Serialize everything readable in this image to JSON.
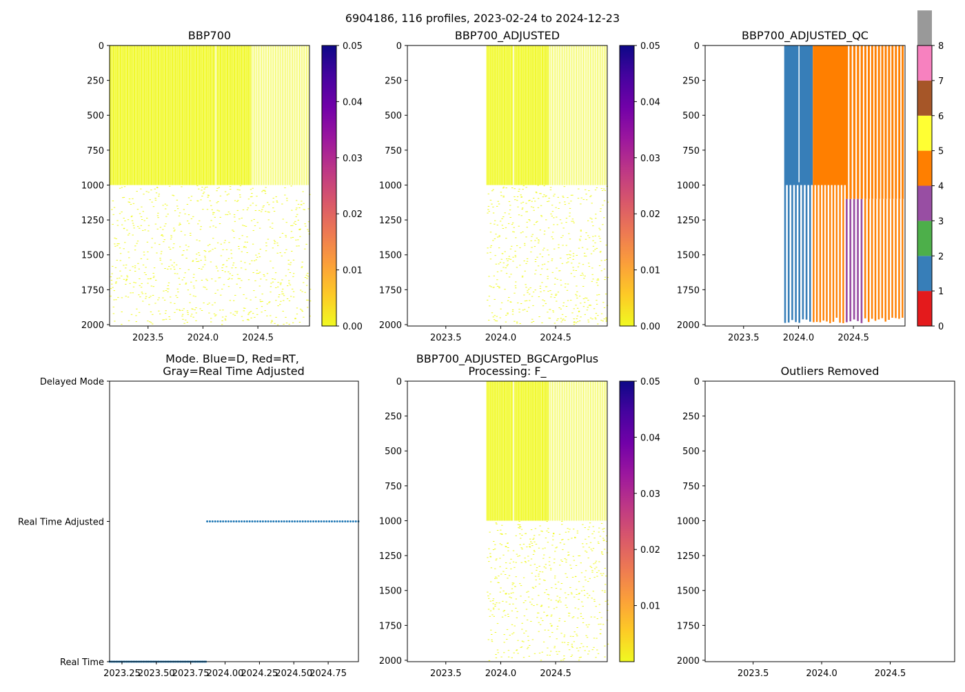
{
  "suptitle": "6904186, 116 profiles, 2023-02-24 to 2024-12-23",
  "colors": {
    "background": "#ffffff",
    "data_yellow": "#f0f921",
    "mode_blue": "#1f77b4",
    "qc": [
      "#e41a1c",
      "#377eb8",
      "#4daf4a",
      "#984ea3",
      "#ff7f00",
      "#ffff33",
      "#a65628",
      "#f781bf",
      "#999999"
    ],
    "plasma_stops": [
      "#f0f921",
      "#fdca26",
      "#fb9f3a",
      "#ed7953",
      "#d8576b",
      "#bd3786",
      "#9c179e",
      "#7201a8",
      "#46039f",
      "#0d0887"
    ]
  },
  "chart_data": [
    {
      "id": "bbp700",
      "type": "heatmap",
      "title": "BBP700",
      "xlim": [
        2023.15,
        2024.97
      ],
      "ylim": [
        2010,
        0
      ],
      "xticks": [
        2023.5,
        2024.0,
        2024.5
      ],
      "xtick_labels": [
        "2023.5",
        "2024.0",
        "2024.5"
      ],
      "yticks": [
        0,
        250,
        500,
        750,
        1000,
        1250,
        1500,
        1750,
        2000
      ],
      "ytick_labels": [
        "0",
        "250",
        "500",
        "750",
        "1000",
        "1250",
        "1500",
        "1750",
        "2000"
      ],
      "profile_start": 2023.15,
      "profile_end": 2024.97,
      "dense_to_depth": 1000,
      "sparse_to_depth": 2000,
      "colorbar": {
        "vmin": 0.0,
        "vmax": 0.05,
        "ticks": [
          0.0,
          0.01,
          0.02,
          0.03,
          0.04,
          0.05
        ],
        "tick_labels": [
          "0.00",
          "0.01",
          "0.02",
          "0.03",
          "0.04",
          "0.05"
        ]
      }
    },
    {
      "id": "bbp700adj",
      "type": "heatmap",
      "title": "BBP700_ADJUSTED",
      "xlim": [
        2023.15,
        2024.97
      ],
      "ylim": [
        2010,
        0
      ],
      "xticks": [
        2023.5,
        2024.0,
        2024.5
      ],
      "xtick_labels": [
        "2023.5",
        "2024.0",
        "2024.5"
      ],
      "yticks": [
        0,
        250,
        500,
        750,
        1000,
        1250,
        1500,
        1750,
        2000
      ],
      "ytick_labels": [
        "0",
        "250",
        "500",
        "750",
        "1000",
        "1250",
        "1500",
        "1750",
        "2000"
      ],
      "profile_start": 2023.87,
      "profile_end": 2024.97,
      "dense_to_depth": 1000,
      "sparse_to_depth": 2000,
      "colorbar": {
        "vmin": 0.0,
        "vmax": 0.05,
        "ticks": [
          0.0,
          0.01,
          0.02,
          0.03,
          0.04,
          0.05
        ],
        "tick_labels": [
          "0.00",
          "0.01",
          "0.02",
          "0.03",
          "0.04",
          "0.05"
        ]
      }
    },
    {
      "id": "qc",
      "type": "heatmap",
      "title": "BBP700_ADJUSTED_QC",
      "xlim": [
        2023.15,
        2024.97
      ],
      "ylim": [
        2010,
        0
      ],
      "xticks": [
        2023.5,
        2024.0,
        2024.5
      ],
      "xtick_labels": [
        "2023.5",
        "2024.0",
        "2024.5"
      ],
      "yticks": [
        0,
        250,
        500,
        750,
        1000,
        1250,
        1500,
        1750,
        2000
      ],
      "ytick_labels": [
        "0",
        "250",
        "500",
        "750",
        "1000",
        "1250",
        "1500",
        "1750",
        "2000"
      ],
      "qc_segments": [
        {
          "x0": 2023.87,
          "x1": 2024.13,
          "flag_upper": 1,
          "split_depth": 1000,
          "flag_lower": 1
        },
        {
          "x0": 2024.13,
          "x1": 2024.43,
          "flag_upper": 4,
          "split_depth": 1000,
          "flag_lower": 4
        },
        {
          "x0": 2024.43,
          "x1": 2024.6,
          "flag_upper": 4,
          "split_depth": 1100,
          "flag_lower": 3
        },
        {
          "x0": 2024.6,
          "x1": 2024.97,
          "flag_upper": 4,
          "split_depth": 1100,
          "flag_lower": 4
        }
      ],
      "colorbar": {
        "vmin": 0,
        "vmax": 8,
        "ticks": [
          0,
          1,
          2,
          3,
          4,
          5,
          6,
          7,
          8
        ],
        "tick_labels": [
          "0",
          "1",
          "2",
          "3",
          "4",
          "5",
          "6",
          "7",
          "8"
        ]
      }
    },
    {
      "id": "mode",
      "type": "scatter",
      "title_lines": [
        "Mode. Blue=D, Red=RT,",
        "Gray=Real Time Adjusted"
      ],
      "xlim": [
        2023.16,
        2024.97
      ],
      "ylim": [
        0,
        2
      ],
      "xticks": [
        2023.25,
        2023.5,
        2023.75,
        2024.0,
        2024.25,
        2024.5,
        2024.75
      ],
      "xtick_labels": [
        "2023.25",
        "2023.50",
        "2023.75",
        "2024.00",
        "2024.25",
        "2024.50",
        "2024.75"
      ],
      "yticks": [
        0,
        1,
        2
      ],
      "ytick_labels": [
        "Real Time",
        "Real Time Adjusted",
        "Delayed Mode"
      ],
      "series": [
        {
          "name": "Real Time",
          "y": 0,
          "x_start": 2023.16,
          "x_end": 2023.86,
          "count": 58
        },
        {
          "name": "Real Time Adjusted",
          "y": 1,
          "x_start": 2023.87,
          "x_end": 2024.97,
          "count": 58
        }
      ]
    },
    {
      "id": "plus",
      "type": "heatmap",
      "title_lines": [
        "BBP700_ADJUSTED_BGCArgoPlus",
        "Processing: F_"
      ],
      "xlim": [
        2023.15,
        2024.97
      ],
      "ylim": [
        2010,
        0
      ],
      "xticks": [
        2023.5,
        2024.0,
        2024.5
      ],
      "xtick_labels": [
        "2023.5",
        "2024.0",
        "2024.5"
      ],
      "yticks": [
        0,
        250,
        500,
        750,
        1000,
        1250,
        1500,
        1750,
        2000
      ],
      "ytick_labels": [
        "0",
        "250",
        "500",
        "750",
        "1000",
        "1250",
        "1500",
        "1750",
        "2000"
      ],
      "profile_start": 2023.87,
      "profile_end": 2024.97,
      "dense_to_depth": 1000,
      "sparse_to_depth": 2000,
      "colorbar": {
        "vmin": 0.0,
        "vmax": 0.05,
        "ticks": [
          0.01,
          0.02,
          0.03,
          0.04,
          0.05
        ],
        "tick_labels": [
          "0.01",
          "0.02",
          "0.03",
          "0.04",
          "0.05"
        ]
      }
    },
    {
      "id": "outliers",
      "type": "scatter",
      "title": "Outliers Removed",
      "xlim": [
        2023.15,
        2024.97
      ],
      "ylim": [
        2010,
        0
      ],
      "xticks": [
        2023.5,
        2024.0,
        2024.5
      ],
      "xtick_labels": [
        "2023.5",
        "2024.0",
        "2024.5"
      ],
      "yticks": [
        0,
        250,
        500,
        750,
        1000,
        1250,
        1500,
        1750,
        2000
      ],
      "ytick_labels": [
        "0",
        "250",
        "500",
        "750",
        "1000",
        "1250",
        "1500",
        "1750",
        "2000"
      ],
      "points": []
    }
  ]
}
